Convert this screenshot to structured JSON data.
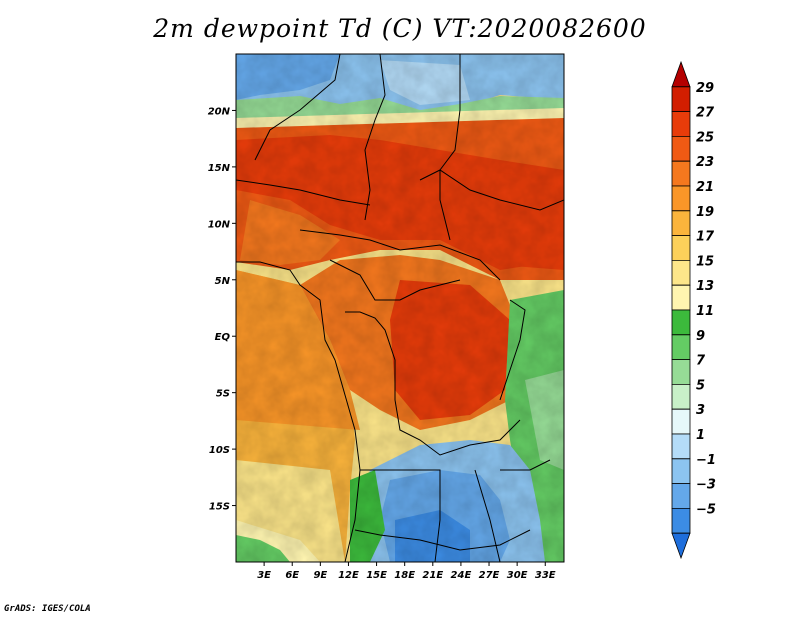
{
  "title": "2m dewpoint Td (C) VT:2020082600",
  "footer": "GrADS: IGES/COLA",
  "map": {
    "lon_range": [
      0,
      35
    ],
    "lat_range": [
      -20,
      25
    ],
    "x_ticks": [
      {
        "lon": 3,
        "label": "3E"
      },
      {
        "lon": 6,
        "label": "6E"
      },
      {
        "lon": 9,
        "label": "9E"
      },
      {
        "lon": 12,
        "label": "12E"
      },
      {
        "lon": 15,
        "label": "15E"
      },
      {
        "lon": 18,
        "label": "18E"
      },
      {
        "lon": 21,
        "label": "21E"
      },
      {
        "lon": 24,
        "label": "24E"
      },
      {
        "lon": 27,
        "label": "27E"
      },
      {
        "lon": 30,
        "label": "30E"
      },
      {
        "lon": 33,
        "label": "33E"
      }
    ],
    "y_ticks": [
      {
        "lat": 20,
        "label": "20N"
      },
      {
        "lat": 15,
        "label": "15N"
      },
      {
        "lat": 10,
        "label": "10N"
      },
      {
        "lat": 5,
        "label": "5N"
      },
      {
        "lat": 0,
        "label": "EQ"
      },
      {
        "lat": -5,
        "label": "5S"
      },
      {
        "lat": -10,
        "label": "10S"
      },
      {
        "lat": -15,
        "label": "15S"
      }
    ]
  },
  "colorbar": {
    "levels": [
      "29",
      "27",
      "25",
      "23",
      "21",
      "19",
      "17",
      "15",
      "13",
      "11",
      "9",
      "7",
      "5",
      "3",
      "1",
      "−1",
      "−3",
      "−5"
    ],
    "colors": [
      "#b40000",
      "#d21e00",
      "#e83c0a",
      "#f05a14",
      "#f5781e",
      "#fa9628",
      "#fbb43c",
      "#fcd05a",
      "#fde68a",
      "#fff5b0",
      "#3cba3c",
      "#64cc64",
      "#96dc96",
      "#c8f0c8",
      "#e6f8fa",
      "#b4dcf8",
      "#8cc4f0",
      "#64a8ea",
      "#3c8ce4",
      "#1e6edc"
    ]
  }
}
